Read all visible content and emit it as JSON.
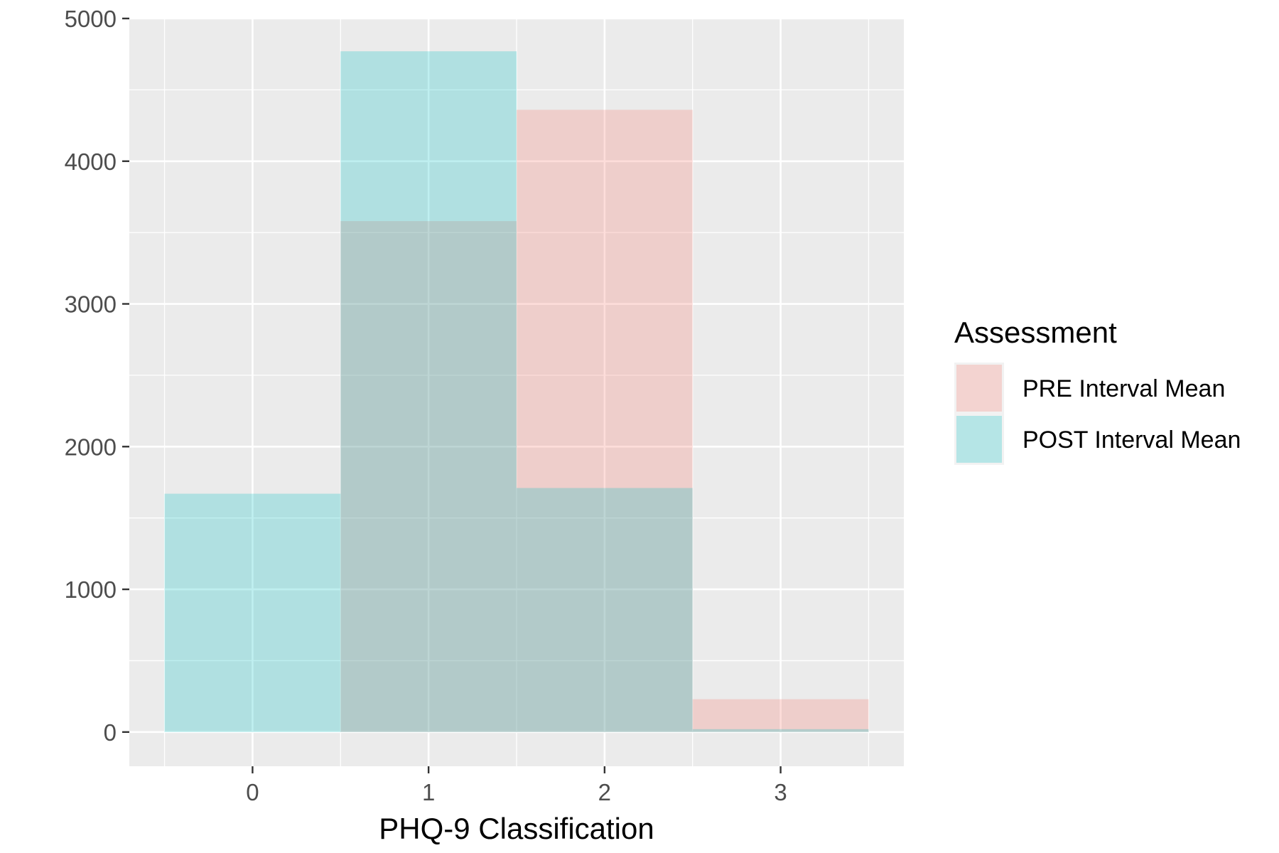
{
  "chart_data": {
    "type": "bar",
    "categories": [
      "0",
      "1",
      "2",
      "3"
    ],
    "x": [
      0,
      1,
      2,
      3
    ],
    "series": [
      {
        "name": "PRE Interval Mean",
        "values": [
          0,
          3580,
          4360,
          230
        ],
        "color": "#F8766D"
      },
      {
        "name": "POST Interval Mean",
        "values": [
          1670,
          4770,
          1710,
          20
        ],
        "color": "#00BFC4"
      }
    ],
    "title": "",
    "xlabel": "PHQ-9 Classification",
    "ylabel": "",
    "xlim": [
      -0.7,
      3.7
    ],
    "ylim": [
      -240,
      5000
    ],
    "yticks": [
      0,
      1000,
      2000,
      3000,
      4000,
      5000
    ],
    "xticks": [
      0,
      1,
      2,
      3
    ],
    "bar_width": 1,
    "bar_opacity": 0.25,
    "panel_background": "#EBEBEB",
    "grid": true,
    "legend": {
      "title": "Assessment",
      "position": "right",
      "entries": [
        "PRE Interval Mean",
        "POST Interval Mean"
      ]
    }
  }
}
